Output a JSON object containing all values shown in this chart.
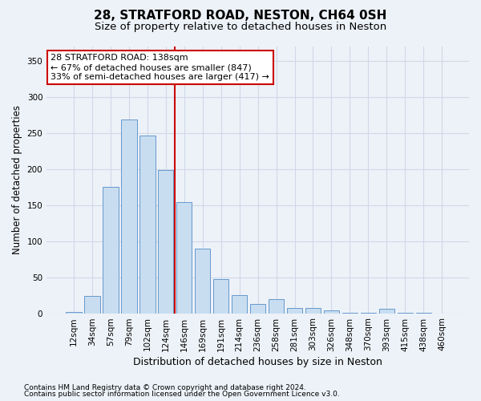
{
  "title1": "28, STRATFORD ROAD, NESTON, CH64 0SH",
  "title2": "Size of property relative to detached houses in Neston",
  "xlabel": "Distribution of detached houses by size in Neston",
  "ylabel": "Number of detached properties",
  "categories": [
    "12sqm",
    "34sqm",
    "57sqm",
    "79sqm",
    "102sqm",
    "124sqm",
    "146sqm",
    "169sqm",
    "191sqm",
    "214sqm",
    "236sqm",
    "258sqm",
    "281sqm",
    "303sqm",
    "326sqm",
    "348sqm",
    "370sqm",
    "393sqm",
    "415sqm",
    "438sqm",
    "460sqm"
  ],
  "values": [
    2,
    24,
    175,
    268,
    246,
    198,
    154,
    90,
    47,
    25,
    13,
    20,
    7,
    7,
    4,
    1,
    1,
    6,
    1,
    1,
    0
  ],
  "bar_color": "#c8ddf0",
  "bar_edge_color": "#6699cc",
  "bar_edge_width": 0.7,
  "vline_x": 5.5,
  "vline_color": "#cc0000",
  "annotation_line1": "28 STRATFORD ROAD: 138sqm",
  "annotation_line2": "← 67% of detached houses are smaller (847)",
  "annotation_line3": "33% of semi-detached houses are larger (417) →",
  "annotation_box_color": "#ffffff",
  "annotation_box_edge": "#cc0000",
  "ylim": [
    0,
    370
  ],
  "yticks": [
    0,
    50,
    100,
    150,
    200,
    250,
    300,
    350
  ],
  "grid_color": "#d0d8e8",
  "bg_color": "#edf2f8",
  "footer1": "Contains HM Land Registry data © Crown copyright and database right 2024.",
  "footer2": "Contains public sector information licensed under the Open Government Licence v3.0.",
  "title1_fontsize": 11,
  "title2_fontsize": 9.5,
  "xlabel_fontsize": 9,
  "ylabel_fontsize": 8.5,
  "tick_fontsize": 7.5,
  "annotation_fontsize": 8,
  "footer_fontsize": 6.5
}
